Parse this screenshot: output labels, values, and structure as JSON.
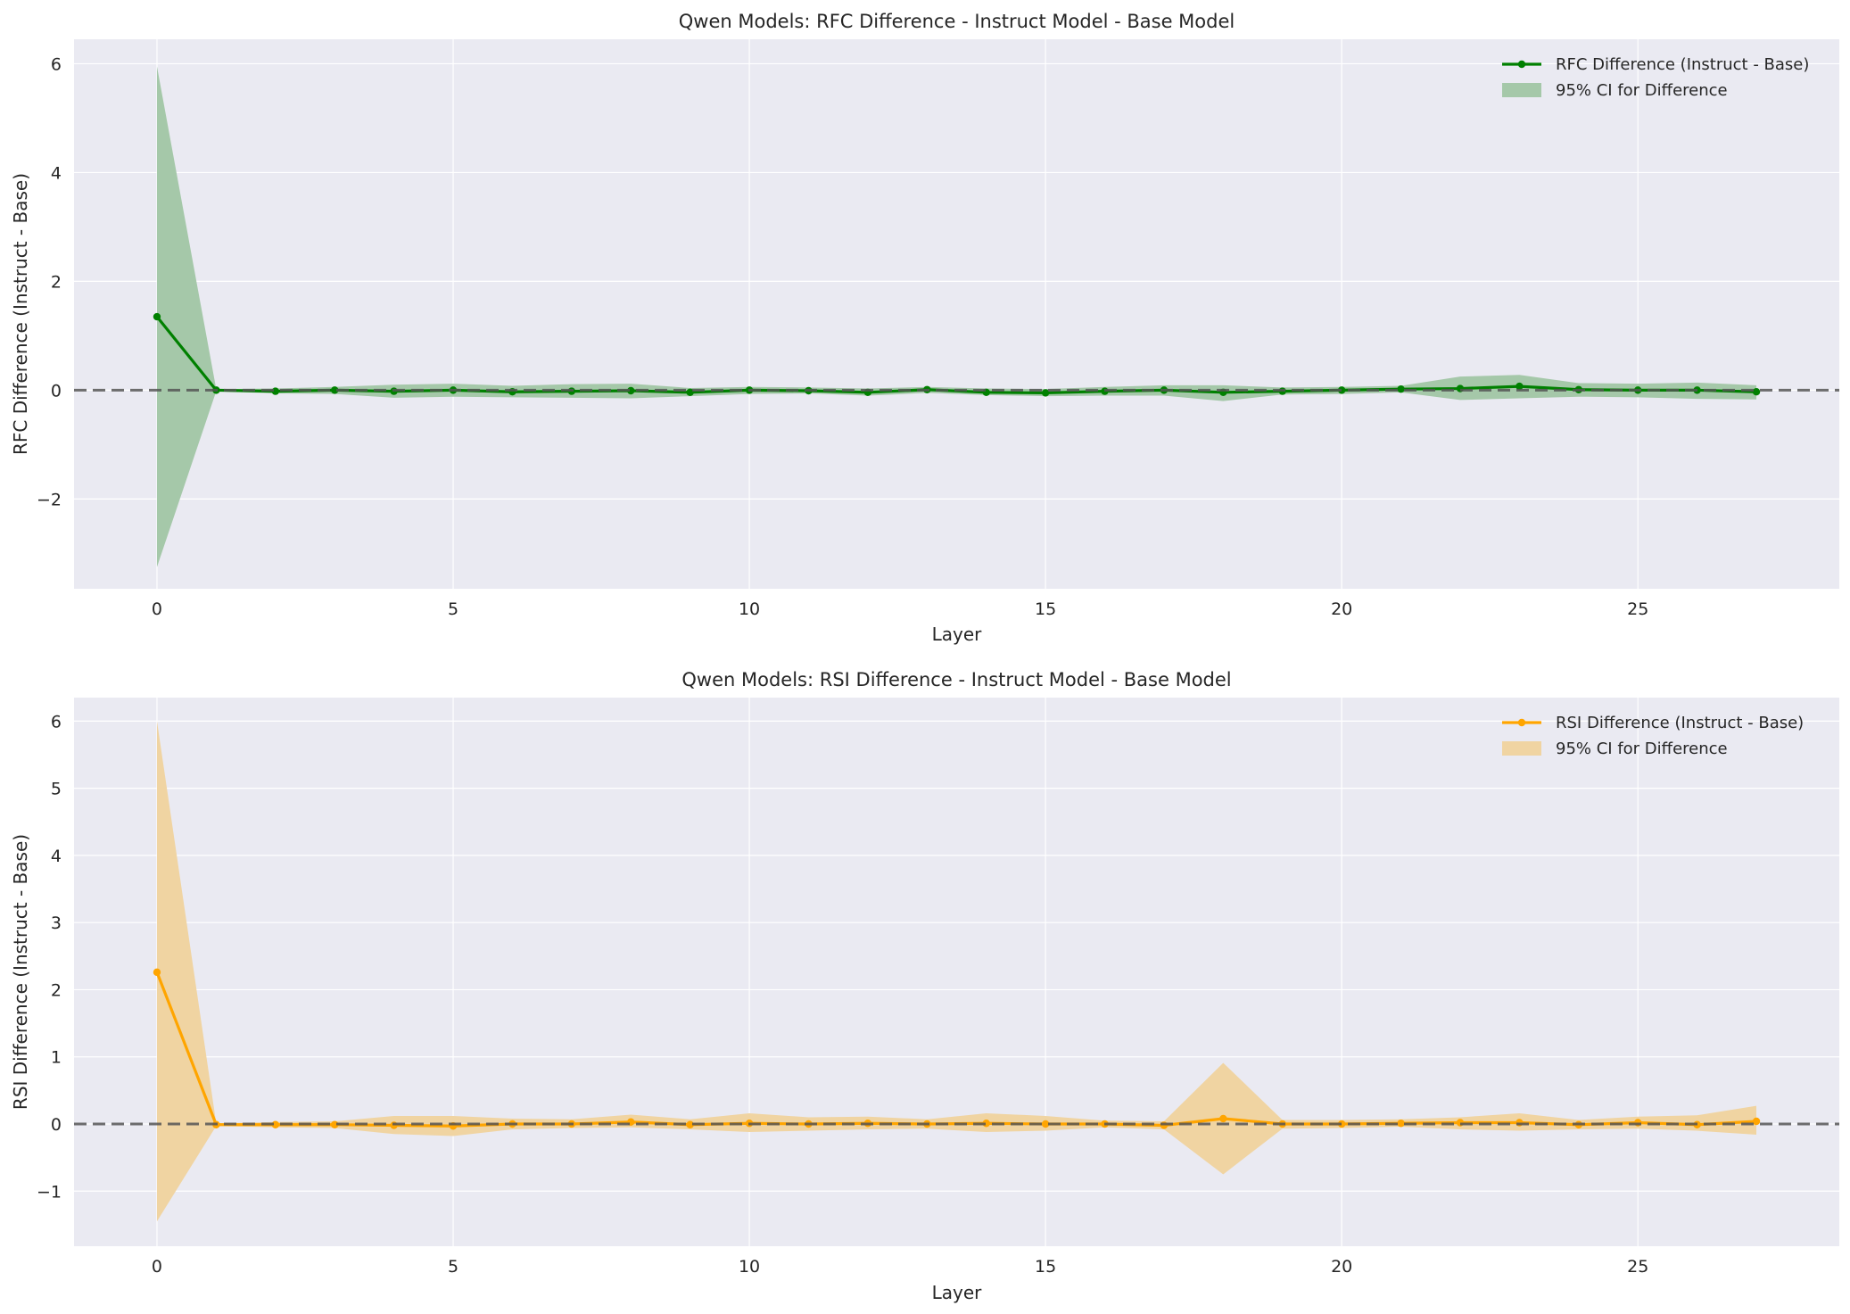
{
  "chart_data": [
    {
      "type": "line",
      "title": "Qwen Models: RFC Difference - Instruct Model - Base Model",
      "xlabel": "Layer",
      "ylabel": "RFC Difference (Instruct - Base)",
      "xlim": [
        -1.4,
        28.4
      ],
      "ylim": [
        -3.65,
        6.45
      ],
      "xticks": [
        0,
        5,
        10,
        15,
        20,
        25
      ],
      "xtick_labels": [
        "0",
        "5",
        "10",
        "15",
        "20",
        "25"
      ],
      "yticks": [
        -2,
        0,
        2,
        4,
        6
      ],
      "ytick_labels": [
        "−2",
        "0",
        "2",
        "4",
        "6"
      ],
      "grid": true,
      "legend_position": "top-right",
      "reference_line": 0,
      "color": "#008000",
      "band_color": "#a5c8a9",
      "series": [
        {
          "name": "RFC Difference (Instruct - Base)",
          "x": [
            0,
            1,
            2,
            3,
            4,
            5,
            6,
            7,
            8,
            9,
            10,
            11,
            12,
            13,
            14,
            15,
            16,
            17,
            18,
            19,
            20,
            21,
            22,
            23,
            24,
            25,
            26,
            27
          ],
          "values": [
            1.35,
            0.0,
            -0.02,
            0.0,
            -0.02,
            0.0,
            -0.03,
            -0.02,
            -0.01,
            -0.04,
            0.0,
            -0.01,
            -0.04,
            0.01,
            -0.04,
            -0.05,
            -0.02,
            0.0,
            -0.04,
            -0.02,
            0.0,
            0.02,
            0.03,
            0.07,
            0.01,
            0.0,
            0.0,
            -0.03
          ]
        },
        {
          "name": "95% CI for Difference",
          "x": [
            0,
            1,
            2,
            3,
            4,
            5,
            6,
            7,
            8,
            9,
            10,
            11,
            12,
            13,
            14,
            15,
            16,
            17,
            18,
            19,
            20,
            21,
            22,
            23,
            24,
            25,
            26,
            27
          ],
          "lower": [
            -3.25,
            -0.02,
            -0.06,
            -0.07,
            -0.14,
            -0.12,
            -0.13,
            -0.14,
            -0.15,
            -0.11,
            -0.07,
            -0.06,
            -0.1,
            -0.05,
            -0.09,
            -0.11,
            -0.1,
            -0.1,
            -0.2,
            -0.08,
            -0.07,
            -0.04,
            -0.18,
            -0.15,
            -0.12,
            -0.13,
            -0.16,
            -0.17
          ],
          "upper": [
            5.95,
            0.02,
            0.03,
            0.06,
            0.1,
            0.12,
            0.08,
            0.11,
            0.12,
            0.04,
            0.06,
            0.05,
            0.03,
            0.06,
            0.03,
            0.02,
            0.06,
            0.09,
            0.09,
            0.05,
            0.06,
            0.08,
            0.25,
            0.28,
            0.13,
            0.12,
            0.14,
            0.09
          ]
        }
      ]
    },
    {
      "type": "line",
      "title": "Qwen Models: RSI Difference - Instruct Model - Base Model",
      "xlabel": "Layer",
      "ylabel": "RSI Difference (Instruct - Base)",
      "xlim": [
        -1.4,
        28.4
      ],
      "ylim": [
        -1.82,
        6.35
      ],
      "xticks": [
        0,
        5,
        10,
        15,
        20,
        25
      ],
      "xtick_labels": [
        "0",
        "5",
        "10",
        "15",
        "20",
        "25"
      ],
      "yticks": [
        -1,
        0,
        1,
        2,
        3,
        4,
        5,
        6
      ],
      "ytick_labels": [
        "−1",
        "0",
        "1",
        "2",
        "3",
        "4",
        "5",
        "6"
      ],
      "grid": true,
      "legend_position": "top-right",
      "reference_line": 0,
      "color": "#ffa500",
      "band_color": "#f0d4a2",
      "series": [
        {
          "name": "RSI Difference (Instruct - Base)",
          "x": [
            0,
            1,
            2,
            3,
            4,
            5,
            6,
            7,
            8,
            9,
            10,
            11,
            12,
            13,
            14,
            15,
            16,
            17,
            18,
            19,
            20,
            21,
            22,
            23,
            24,
            25,
            26,
            27
          ],
          "values": [
            2.26,
            -0.01,
            -0.01,
            -0.01,
            -0.02,
            -0.03,
            0.0,
            0.0,
            0.03,
            -0.01,
            0.01,
            0.0,
            0.01,
            0.0,
            0.01,
            0.0,
            0.0,
            -0.02,
            0.08,
            0.0,
            0.0,
            0.01,
            0.02,
            0.02,
            -0.01,
            0.02,
            -0.01,
            0.04
          ]
        },
        {
          "name": "95% CI for Difference",
          "x": [
            0,
            1,
            2,
            3,
            4,
            5,
            6,
            7,
            8,
            9,
            10,
            11,
            12,
            13,
            14,
            15,
            16,
            17,
            18,
            19,
            20,
            21,
            22,
            23,
            24,
            25,
            26,
            27
          ],
          "lower": [
            -1.45,
            -0.03,
            -0.05,
            -0.06,
            -0.15,
            -0.18,
            -0.08,
            -0.06,
            -0.05,
            -0.08,
            -0.12,
            -0.1,
            -0.08,
            -0.07,
            -0.12,
            -0.1,
            -0.05,
            -0.08,
            -0.75,
            -0.07,
            -0.06,
            -0.04,
            -0.08,
            -0.1,
            -0.08,
            -0.07,
            -0.1,
            -0.16
          ],
          "upper": [
            6.0,
            0.01,
            0.03,
            0.04,
            0.12,
            0.12,
            0.08,
            0.07,
            0.14,
            0.07,
            0.16,
            0.1,
            0.11,
            0.07,
            0.16,
            0.12,
            0.05,
            0.04,
            0.91,
            0.06,
            0.06,
            0.07,
            0.1,
            0.16,
            0.06,
            0.11,
            0.13,
            0.27
          ]
        }
      ]
    }
  ]
}
